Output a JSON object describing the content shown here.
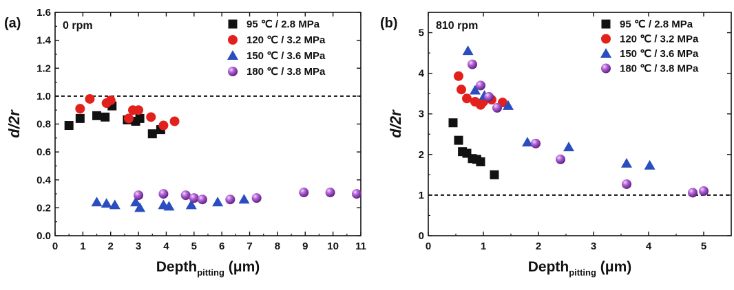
{
  "chart_data": [
    {
      "type": "scatter",
      "panel_label": "(a)",
      "annotation": "0 rpm",
      "xlabel": "Depth",
      "xlabel_sub": "pitting",
      "xlabel_unit": "(μm)",
      "ylabel": "d/2r",
      "xlim": [
        0,
        11
      ],
      "ylim": [
        0,
        1.6
      ],
      "xticks": [
        "0",
        "1",
        "2",
        "3",
        "4",
        "5",
        "6",
        "7",
        "8",
        "9",
        "10",
        "11"
      ],
      "yticks": [
        "0.0",
        "0.2",
        "0.4",
        "0.6",
        "0.8",
        "1.0",
        "1.2",
        "1.4",
        "1.6"
      ],
      "reference_line": 1.0,
      "series": [
        {
          "name": "95 ℃ / 2.8 MPa",
          "marker": "square",
          "color": "#111111",
          "x": [
            0.5,
            0.9,
            1.5,
            1.8,
            2.05,
            2.6,
            2.9,
            3.05,
            3.5,
            3.8
          ],
          "y": [
            0.79,
            0.84,
            0.86,
            0.85,
            0.93,
            0.83,
            0.82,
            0.84,
            0.73,
            0.76
          ]
        },
        {
          "name": "120 ℃ / 3.2 MPa",
          "marker": "circle",
          "color": "#e3211c",
          "x": [
            0.9,
            1.25,
            1.85,
            2.0,
            2.65,
            2.8,
            3.0,
            3.45,
            3.9,
            4.3
          ],
          "y": [
            0.91,
            0.98,
            0.95,
            0.97,
            0.84,
            0.9,
            0.9,
            0.85,
            0.79,
            0.82
          ]
        },
        {
          "name": "150 ℃ / 3.6 MPa",
          "marker": "triangle",
          "color": "#2a4dbf",
          "x": [
            1.5,
            1.85,
            2.15,
            2.9,
            3.05,
            3.9,
            4.1,
            4.9,
            5.85,
            6.8
          ],
          "y": [
            0.24,
            0.23,
            0.22,
            0.24,
            0.2,
            0.22,
            0.21,
            0.22,
            0.24,
            0.26
          ]
        },
        {
          "name": "180 ℃ / 3.8 MPa",
          "marker": "sphere",
          "color": "#8e3fb0",
          "x": [
            3.0,
            3.9,
            4.7,
            5.0,
            5.3,
            6.3,
            7.25,
            8.95,
            9.9,
            10.85
          ],
          "y": [
            0.29,
            0.3,
            0.29,
            0.27,
            0.26,
            0.26,
            0.27,
            0.31,
            0.31,
            0.3
          ]
        }
      ]
    },
    {
      "type": "scatter",
      "panel_label": "(b)",
      "annotation": "810 rpm",
      "xlabel": "Depth",
      "xlabel_sub": "pitting",
      "xlabel_unit": "(μm)",
      "ylabel": "d/2r",
      "xlim": [
        0,
        5.5
      ],
      "ylim": [
        0,
        5.5
      ],
      "xticks": [
        "0",
        "1",
        "2",
        "3",
        "4",
        "5"
      ],
      "yticks": [
        "0",
        "1",
        "2",
        "3",
        "4",
        "5"
      ],
      "reference_line": 1.0,
      "series": [
        {
          "name": "95 ℃ / 2.8 MPa",
          "marker": "square",
          "color": "#111111",
          "x": [
            0.45,
            0.55,
            0.62,
            0.7,
            0.8,
            0.88,
            0.95,
            1.2
          ],
          "y": [
            2.78,
            2.35,
            2.07,
            2.03,
            1.9,
            1.88,
            1.82,
            1.5
          ]
        },
        {
          "name": "120 ℃ / 3.2 MPa",
          "marker": "circle",
          "color": "#e3211c",
          "x": [
            0.55,
            0.6,
            0.7,
            0.85,
            0.95,
            1.0,
            1.15,
            1.35
          ],
          "y": [
            3.93,
            3.6,
            3.38,
            3.3,
            3.22,
            3.3,
            3.35,
            3.28
          ]
        },
        {
          "name": "150 ℃ / 3.6 MPa",
          "marker": "triangle",
          "color": "#2a4dbf",
          "x": [
            0.72,
            0.85,
            1.02,
            1.45,
            1.8,
            2.55,
            3.6,
            4.02
          ],
          "y": [
            4.55,
            3.58,
            3.45,
            3.2,
            2.3,
            2.18,
            1.78,
            1.73
          ]
        },
        {
          "name": "180 ℃ / 3.8 MPa",
          "marker": "sphere",
          "color": "#8e3fb0",
          "x": [
            0.8,
            0.95,
            1.1,
            1.25,
            1.95,
            2.4,
            3.6,
            4.8,
            5.0
          ],
          "y": [
            4.22,
            3.7,
            3.42,
            3.15,
            2.27,
            1.88,
            1.27,
            1.06,
            1.1
          ]
        }
      ]
    }
  ]
}
